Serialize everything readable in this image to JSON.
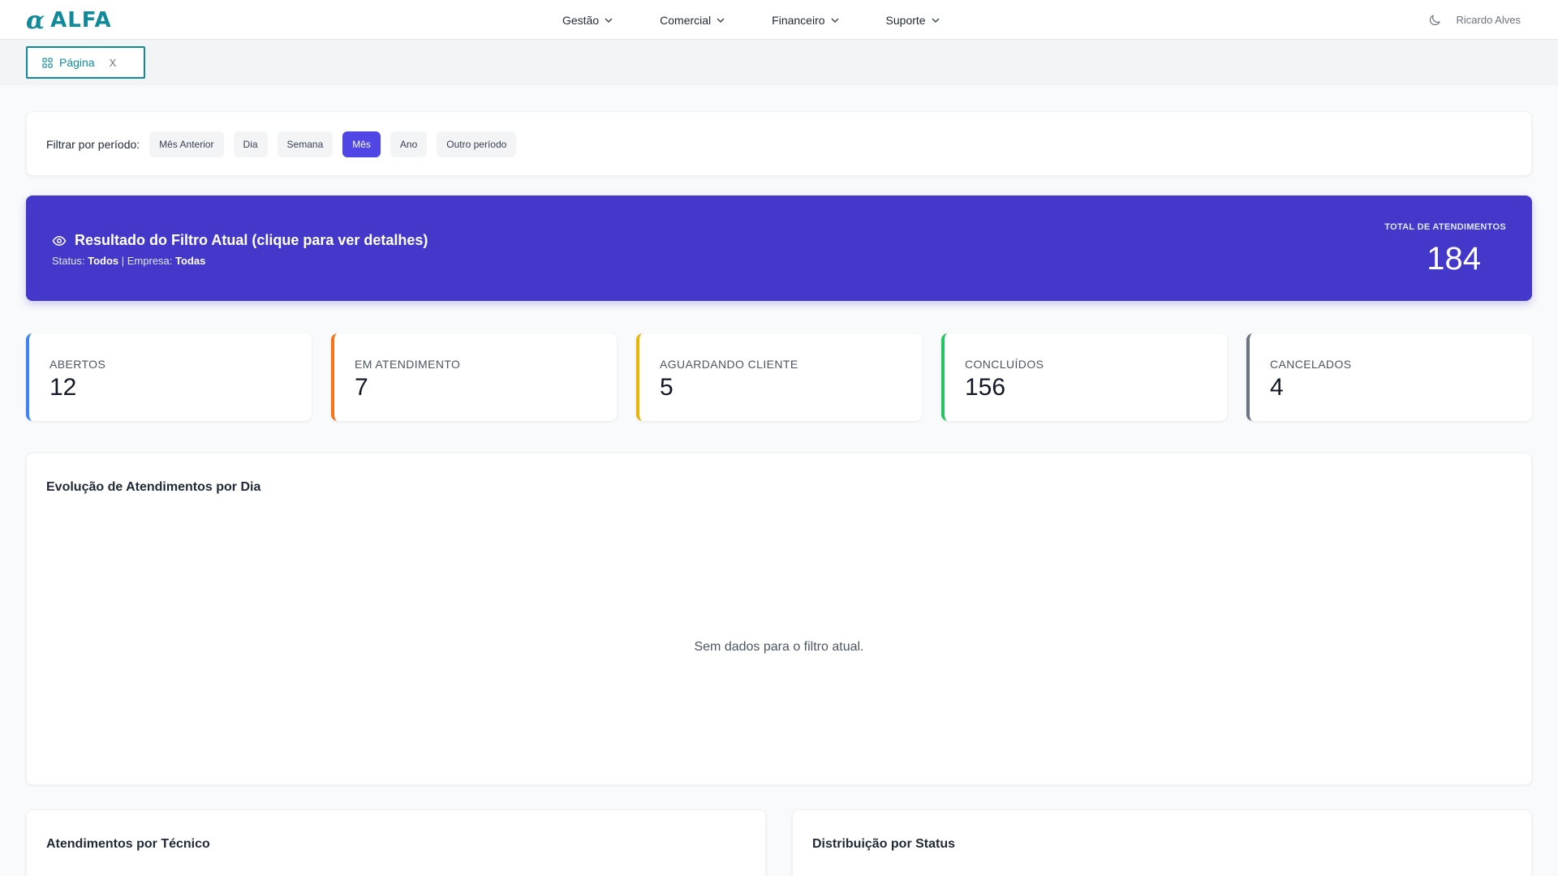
{
  "app": {
    "logo_text": "ALFA",
    "logo_symbol": "α",
    "brand_color": "#0f8a9a"
  },
  "nav": {
    "items": [
      {
        "label": "Gestão",
        "icon": "chevron-down-icon"
      },
      {
        "label": "Comercial",
        "icon": "chevron-down-icon"
      },
      {
        "label": "Financeiro",
        "icon": "chevron-down-icon"
      },
      {
        "label": "Suporte",
        "icon": "chevron-down-icon"
      }
    ]
  },
  "user": {
    "name": "Ricardo Alves",
    "theme_icon": "moon-icon"
  },
  "tabs": {
    "current": {
      "label": "Página",
      "icon": "grid-icon",
      "close_label": "X"
    }
  },
  "filter": {
    "label": "Filtrar por período:",
    "options": [
      {
        "label": "Mês Anterior",
        "active": false
      },
      {
        "label": "Dia",
        "active": false
      },
      {
        "label": "Semana",
        "active": false
      },
      {
        "label": "Mês",
        "active": true
      },
      {
        "label": "Ano",
        "active": false
      },
      {
        "label": "Outro período",
        "active": false
      }
    ],
    "active_color": "#4f46e5"
  },
  "summary": {
    "title": "Resultado do Filtro Atual (clique para ver detalhes)",
    "status_label": "Status:",
    "status_value": "Todos",
    "separator": "|",
    "company_label": "Empresa:",
    "company_value": "Todas",
    "total_label": "TOTAL DE ATENDIMENTOS",
    "total_value": "184",
    "bg_color": "#4338ca"
  },
  "stats": [
    {
      "label": "ABERTOS",
      "value": "12",
      "color": "#3b82f6"
    },
    {
      "label": "EM ATENDIMENTO",
      "value": "7",
      "color": "#f97316"
    },
    {
      "label": "AGUARDANDO CLIENTE",
      "value": "5",
      "color": "#eab308"
    },
    {
      "label": "CONCLUÍDOS",
      "value": "156",
      "color": "#22c55e"
    },
    {
      "label": "CANCELADOS",
      "value": "4",
      "color": "#6b7280"
    }
  ],
  "evolution": {
    "title": "Evolução de Atendimentos por Dia",
    "empty_message": "Sem dados para o filtro atual."
  },
  "by_technician": {
    "title": "Atendimentos por Técnico"
  },
  "by_status": {
    "title": "Distribuição por Status"
  }
}
